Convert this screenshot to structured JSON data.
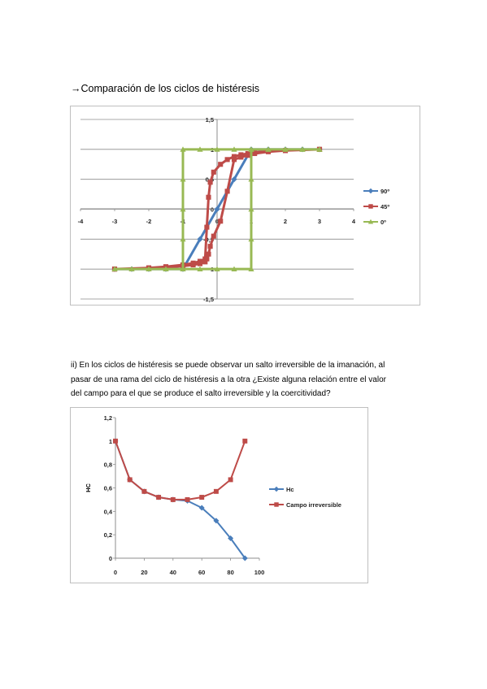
{
  "heading": "→Comparación de los ciclos de histéresis",
  "paragraph": [
    "ii) En los ciclos de histéresis se puede observar un salto irreversible de la imanación, al",
    "pasar de una rama del ciclo de histéresis a la otra  ¿Existe alguna relación entre el valor",
    "del campo para el que se produce el salto irreversible y la coercitividad?"
  ],
  "chart_data": [
    {
      "type": "line",
      "title": "",
      "xlim": [
        -4,
        4
      ],
      "ylim": [
        -1.5,
        1.5
      ],
      "x_ticks": [
        "-4",
        "-3",
        "-2",
        "-1",
        "0",
        "1",
        "2",
        "3",
        "4"
      ],
      "y_ticks": [
        "1,5",
        "1",
        "0,5",
        "0",
        "-0,5",
        "-1",
        "-1,5"
      ],
      "grid": "horizontal",
      "legend_position": "right",
      "series": [
        {
          "name": "90º",
          "color": "#4a7ebb",
          "marker": "diamond",
          "x": [
            -3,
            -2.5,
            -2,
            -1.5,
            -1,
            -0.5,
            0,
            0.5,
            1,
            1.5,
            2,
            2.5,
            3
          ],
          "y": [
            -1,
            -1,
            -1,
            -1,
            -1,
            -0.5,
            0,
            0.5,
            1,
            1,
            1,
            1,
            1
          ]
        },
        {
          "name": "45º",
          "color": "#be4b48",
          "marker": "square",
          "x": [
            -3,
            -2,
            -1.5,
            -1,
            -0.7,
            -0.5,
            -0.35,
            -0.3,
            -0.25,
            -0.2,
            -0.1,
            0.1,
            0.3,
            0.5,
            0.7,
            0.9,
            1.1,
            1.5,
            2,
            3,
            3,
            2,
            1.5,
            1.1,
            0.9,
            0.7,
            0.5,
            0.3,
            0.1,
            -0.1,
            -0.2,
            -0.25,
            -0.3,
            -0.35,
            -0.5,
            -0.7,
            -1,
            -1.5,
            -2,
            -3
          ],
          "y": [
            -1,
            -0.98,
            -0.96,
            -0.93,
            -0.9,
            -0.87,
            -0.83,
            -0.3,
            0.2,
            0.45,
            0.62,
            0.75,
            0.83,
            0.88,
            0.91,
            0.93,
            0.95,
            0.97,
            0.98,
            1,
            1,
            0.98,
            0.96,
            0.93,
            0.9,
            0.87,
            0.83,
            0.3,
            -0.2,
            -0.45,
            -0.62,
            -0.75,
            -0.83,
            -0.88,
            -0.91,
            -0.93,
            -0.95,
            -0.97,
            -0.98,
            -1
          ]
        },
        {
          "name": "0º",
          "color": "#98b954",
          "marker": "triangle",
          "x": [
            -3,
            -2.5,
            -2,
            -1.5,
            -1,
            -1,
            -1,
            -1,
            -1,
            -0.5,
            0,
            0.5,
            1,
            1.5,
            2,
            2.5,
            3,
            3,
            2.5,
            2,
            1.5,
            1,
            1,
            1,
            1,
            1,
            0.5,
            0,
            -0.5,
            -1,
            -1.5,
            -2,
            -2.5,
            -3
          ],
          "y": [
            -1,
            -1,
            -1,
            -1,
            -1,
            -0.5,
            0,
            0.5,
            1,
            1,
            1,
            1,
            1,
            1,
            1,
            1,
            1,
            1,
            1,
            1,
            1,
            1,
            0.5,
            0,
            -0.5,
            -1,
            -1,
            -1,
            -1,
            -1,
            -1,
            -1,
            -1,
            -1
          ]
        }
      ]
    },
    {
      "type": "line",
      "title": "",
      "ylabel": "HC",
      "xlim": [
        0,
        100
      ],
      "ylim": [
        0,
        1.2
      ],
      "x_ticks": [
        "0",
        "20",
        "40",
        "60",
        "80",
        "100"
      ],
      "y_ticks": [
        "1,2",
        "1",
        "0,8",
        "0,6",
        "0,4",
        "0,2",
        "0"
      ],
      "grid": "none",
      "legend_position": "right",
      "series": [
        {
          "name": "Hc",
          "color": "#4a7ebb",
          "marker": "diamond",
          "x": [
            0,
            10,
            20,
            30,
            40,
            50,
            60,
            70,
            80,
            90
          ],
          "y": [
            1,
            0.67,
            0.57,
            0.52,
            0.5,
            0.49,
            0.43,
            0.32,
            0.17,
            0
          ]
        },
        {
          "name": "Campo irreversible",
          "color": "#be4b48",
          "marker": "square",
          "x": [
            0,
            10,
            20,
            30,
            40,
            50,
            60,
            70,
            80,
            90
          ],
          "y": [
            1,
            0.67,
            0.57,
            0.52,
            0.5,
            0.5,
            0.52,
            0.57,
            0.67,
            1
          ]
        }
      ]
    }
  ]
}
